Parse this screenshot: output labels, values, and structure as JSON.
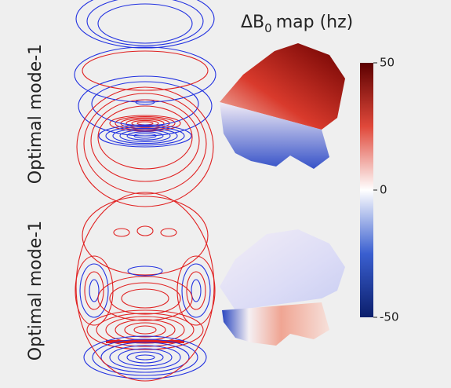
{
  "figure": {
    "title": {
      "main": "ΔB",
      "subscript": "0",
      "rest": "map (hz)"
    },
    "row_labels": [
      "Optimal mode-1",
      "Optimal mode-1"
    ],
    "colorbar": {
      "lim": [
        -50,
        50
      ],
      "ticks": [
        -50,
        0,
        50
      ],
      "colors": [
        "#0b1e6b",
        "#3a5fd0",
        "#ffffff",
        "#e0483a",
        "#5c0000"
      ]
    }
  }
}
